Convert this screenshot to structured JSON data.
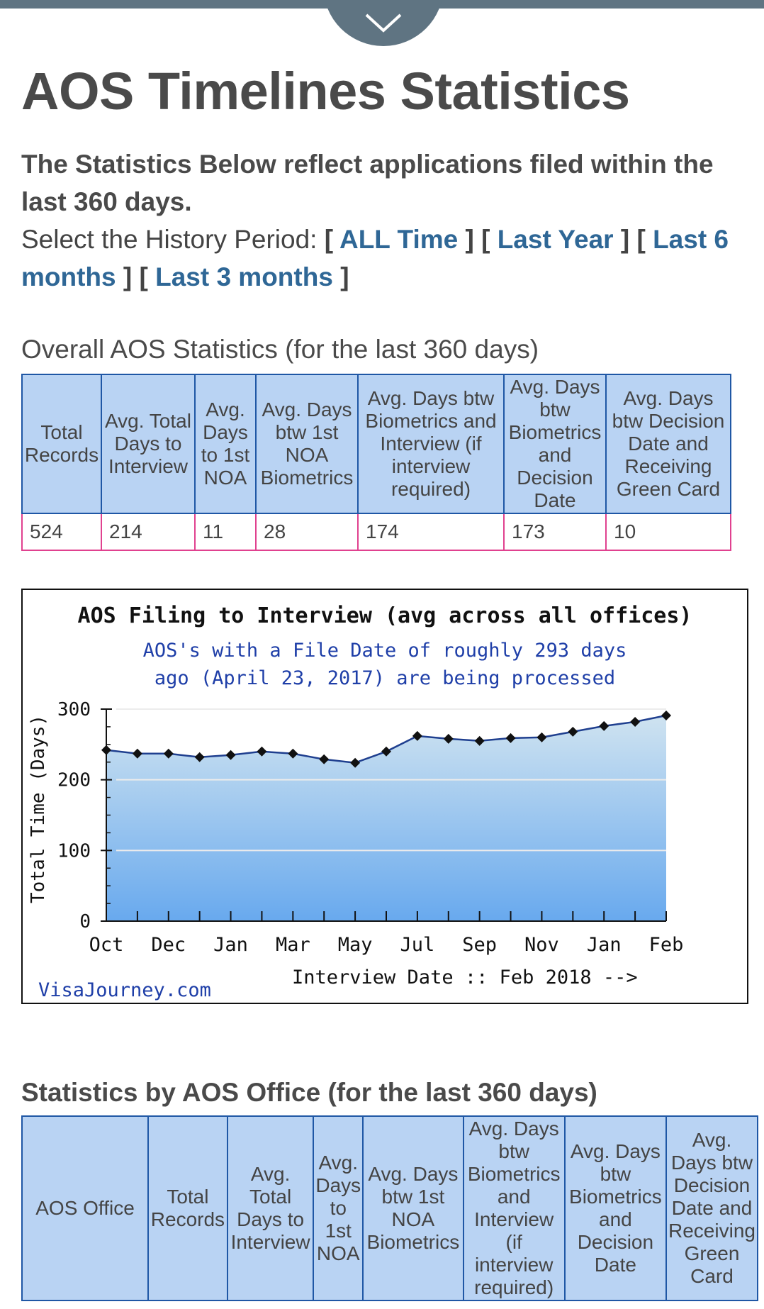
{
  "header": {
    "collapse_icon": "chevron-down-icon"
  },
  "page": {
    "title": "AOS Timelines Statistics",
    "intro_bold": "The Statistics Below reflect applications filed within the last 360 days.",
    "period_prompt": "Select the History Period: ",
    "period_links": [
      "ALL Time",
      "Last Year",
      "Last 6 months",
      "Last 3 months"
    ]
  },
  "overall": {
    "caption": "Overall AOS Statistics (for the last 360 days)",
    "headers": [
      "Total Records",
      "Avg. Total Days to Interview",
      "Avg. Days to 1st NOA",
      "Avg. Days btw 1st NOA Biometrics",
      "Avg. Days btw Biometrics and Interview (if interview required)",
      "Avg. Days btw Biometrics and Decision Date",
      "Avg. Days btw Decision Date and Receiving Green Card"
    ],
    "values": [
      "524",
      "214",
      "11",
      "28",
      "174",
      "173",
      "10"
    ]
  },
  "chart_data": {
    "type": "area",
    "title": "AOS Filing to Interview (avg across all offices)",
    "subtitle_line1": "AOS's with a File Date of roughly 293 days",
    "subtitle_line2": "ago (April 23, 2017) are being processed",
    "ylabel": "Total Time (Days)",
    "xlabel": "Interview Date :: Feb 2018 -->",
    "watermark": "VisaJourney.com",
    "ylim": [
      0,
      300
    ],
    "yticks": [
      "0",
      "100",
      "200",
      "300"
    ],
    "xtick_labels": [
      "Oct",
      "Dec",
      "Jan",
      "Mar",
      "May",
      "Jul",
      "Sep",
      "Nov",
      "Jan",
      "Feb"
    ],
    "series": [
      {
        "values": [
          242,
          237,
          237,
          232,
          235,
          240,
          237,
          229,
          224,
          240,
          262,
          258,
          255,
          259,
          260,
          268,
          276,
          282,
          291
        ]
      }
    ],
    "colors": {
      "fill_top": "#cfe3f0",
      "fill_bottom": "#68a9ee",
      "line": "#1f3f8f",
      "marker": "#111111",
      "subtitle": "#1f3fa8"
    }
  },
  "office": {
    "caption": "Statistics by AOS Office (for the last 360 days)",
    "headers": [
      "AOS Office",
      "Total Records",
      "Avg. Total Days to Interview",
      "Avg. Days to 1st NOA",
      "Avg. Days btw 1st NOA Biometrics",
      "Avg. Days btw Biometrics and Interview (if interview required)",
      "Avg. Days btw Biometrics and Decision Date",
      "Avg. Days btw Decision Date and Receiving Green Card"
    ]
  }
}
